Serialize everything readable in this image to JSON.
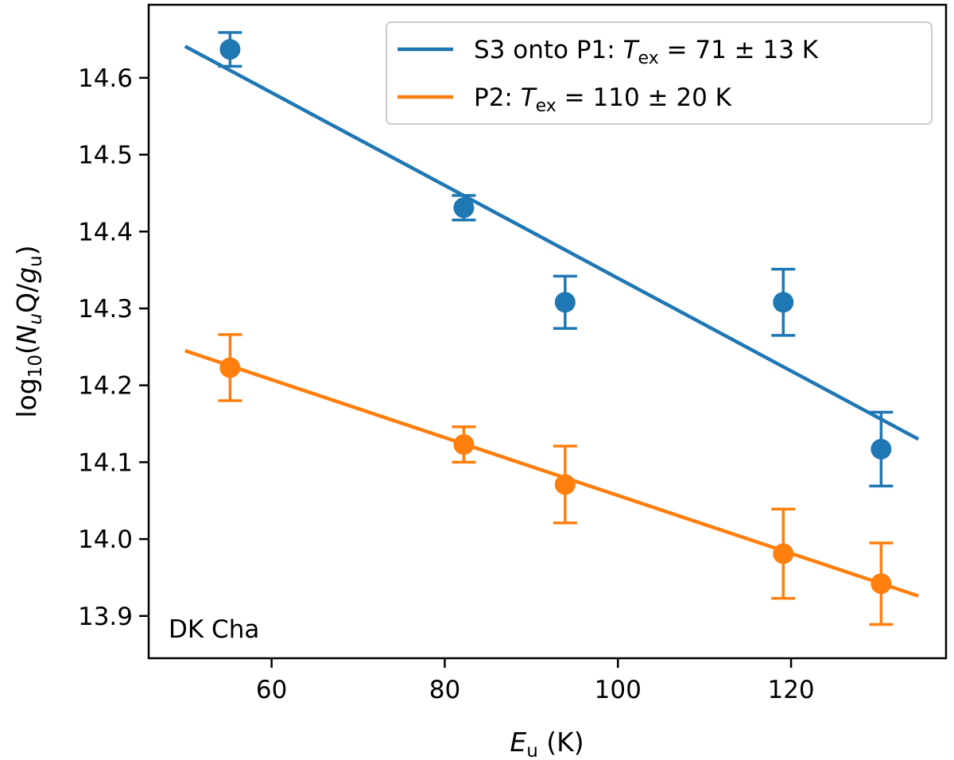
{
  "chart_data": {
    "type": "scatter",
    "xlabel": "E_u (K)",
    "xlabel_main": "E",
    "xlabel_sub": "u",
    "xlabel_unit": " (K)",
    "ylabel_parts": {
      "pre": "log",
      "sub10": "10",
      "open": "(",
      "N": "N",
      "subu": "u",
      "mid": "Q/",
      "g": "g",
      "subu2": "u",
      "close": ")"
    },
    "xlim": [
      45.8,
      137.9
    ],
    "ylim": [
      13.845,
      14.695
    ],
    "xticks": [
      "60",
      "80",
      "100",
      "120"
    ],
    "yticks": [
      "13.9",
      "14.0",
      "14.1",
      "14.2",
      "14.3",
      "14.4",
      "14.5",
      "14.6"
    ],
    "grid": false,
    "legend_placement": "top-right",
    "annotation": "DK Cha",
    "series": [
      {
        "name": "S3 onto P1: T_ex = 71 ± 13 K",
        "legend": {
          "pre": "S3 onto P1: ",
          "T": "T",
          "sub": "ex",
          "post": " = 71 ± 13 K"
        },
        "color": "#1f77b4",
        "x": [
          55.2,
          82.2,
          93.9,
          119.1,
          130.4
        ],
        "y": [
          14.637,
          14.431,
          14.308,
          14.308,
          14.117
        ],
        "yerr": [
          0.022,
          0.016,
          0.034,
          0.043,
          0.048
        ],
        "fit": {
          "x": [
            50,
            134.7
          ],
          "y": [
            14.641,
            14.13
          ]
        }
      },
      {
        "name": "P2: T_ex = 110 ± 20 K",
        "legend": {
          "pre": "P2: ",
          "T": "T",
          "sub": "ex",
          "post": " = 110 ± 20 K"
        },
        "color": "#ff7f0e",
        "x": [
          55.2,
          82.2,
          93.9,
          119.1,
          130.4
        ],
        "y": [
          14.223,
          14.123,
          14.071,
          13.981,
          13.942
        ],
        "yerr": [
          0.043,
          0.023,
          0.05,
          0.058,
          0.053
        ],
        "fit": {
          "x": [
            50,
            134.7
          ],
          "y": [
            14.245,
            13.926
          ]
        }
      }
    ]
  }
}
